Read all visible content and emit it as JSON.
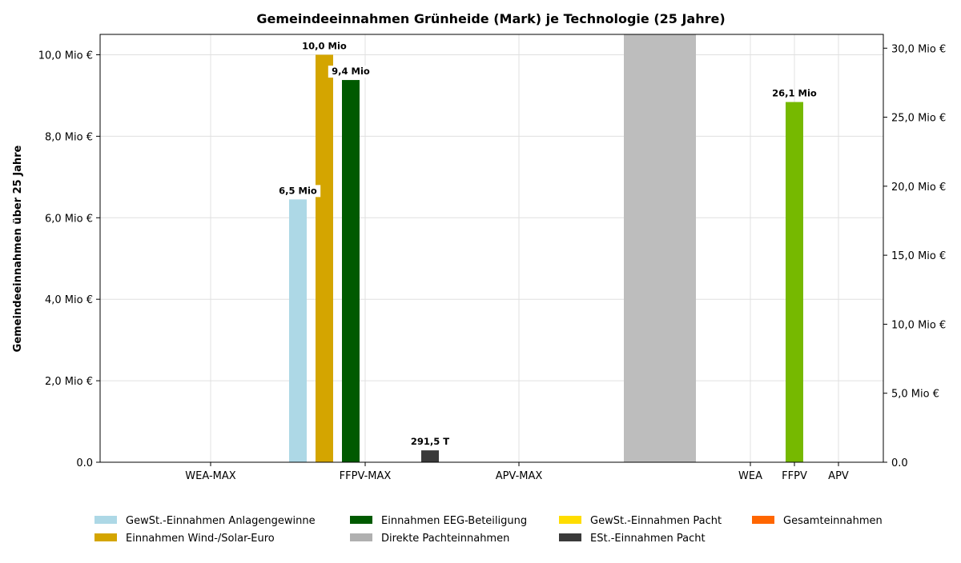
{
  "chart_data": {
    "type": "bar",
    "title": "Gemeindeeinnahmen Grünheide (Mark) je Technologie (25 Jahre)",
    "ylabel": "Gemeindeeinnahmen über 25 Jahre",
    "grid": true,
    "legend_position": "bottom",
    "left_axis": {
      "range": [
        0,
        10.5
      ],
      "ticks": [
        {
          "value": 0,
          "label": "0.0"
        },
        {
          "value": 2,
          "label": "2,0 Mio €"
        },
        {
          "value": 4,
          "label": "4,0 Mio €"
        },
        {
          "value": 6,
          "label": "6,0 Mio €"
        },
        {
          "value": 8,
          "label": "8,0 Mio €"
        },
        {
          "value": 10,
          "label": "10,0 Mio €"
        }
      ]
    },
    "right_axis": {
      "range": [
        0,
        31.0
      ],
      "ticks": [
        {
          "value": 0,
          "label": "0.0"
        },
        {
          "value": 5,
          "label": "5,0 Mio €"
        },
        {
          "value": 10,
          "label": "10,0 Mio €"
        },
        {
          "value": 15,
          "label": "15,0 Mio €"
        },
        {
          "value": 20,
          "label": "20,0 Mio €"
        },
        {
          "value": 25,
          "label": "25,0 Mio €"
        },
        {
          "value": 30,
          "label": "30,0 Mio €"
        }
      ]
    },
    "left_group": {
      "categories": [
        "WEA-MAX",
        "FFPV-MAX",
        "APV-MAX"
      ],
      "bars": [
        {
          "category": "FFPV-MAX",
          "series": "GewSt.-Einnahmen Anlagengewinne",
          "value": 6.45,
          "label": "6,5 Mio"
        },
        {
          "category": "FFPV-MAX",
          "series": "Einnahmen Wind-/Solar-Euro",
          "value": 10.0,
          "label": "10,0 Mio"
        },
        {
          "category": "FFPV-MAX",
          "series": "Einnahmen EEG-Beteiligung",
          "value": 9.38,
          "label": "9,4 Mio"
        },
        {
          "category": "FFPV-MAX",
          "series": "ESt.-Einnahmen Pacht",
          "value": 0.2915,
          "label": "291,5 T"
        }
      ]
    },
    "right_group": {
      "categories": [
        "WEA",
        "FFPV",
        "APV"
      ],
      "bars": [
        {
          "category": "FFPV",
          "series": "Gesamteinnahmen",
          "value": 26.1,
          "label": "26,1 Mio"
        }
      ]
    },
    "separator_band": {
      "color": "#bdbdbd"
    },
    "series": [
      {
        "name": "GewSt.-Einnahmen Anlagengewinne",
        "color": "#add8e6"
      },
      {
        "name": "Einnahmen Wind-/Solar-Euro",
        "color": "#d4a500"
      },
      {
        "name": "Einnahmen EEG-Beteiligung",
        "color": "#005a00"
      },
      {
        "name": "Direkte Pachteinnahmen",
        "color": "#b0b0b0"
      },
      {
        "name": "GewSt.-Einnahmen Pacht",
        "color": "#ffdd00"
      },
      {
        "name": "ESt.-Einnahmen Pacht",
        "color": "#3a3a3a"
      },
      {
        "name": "Gesamteinnahmen",
        "color": "#ff6600"
      }
    ],
    "total_bar_color": "#76b900"
  }
}
